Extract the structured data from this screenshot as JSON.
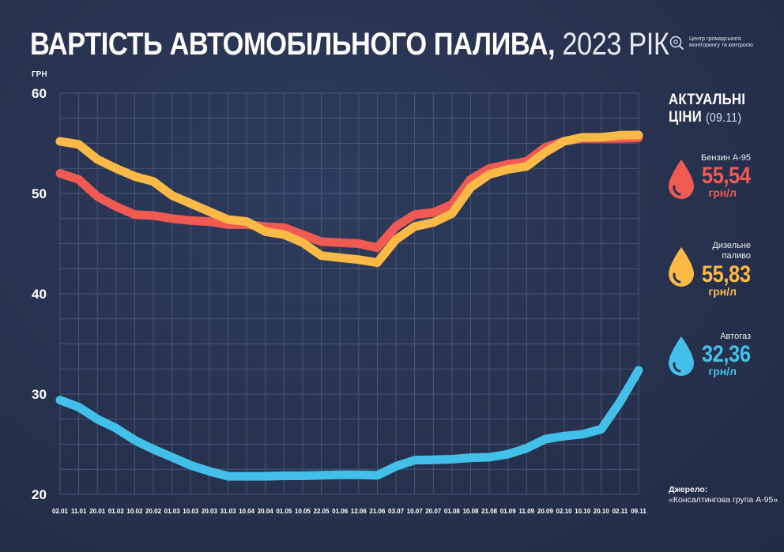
{
  "header": {
    "title_main": "ВАРТІСТЬ АВТОМОБІЛЬНОГО ПАЛИВА,",
    "title_sub": "2023 РІК",
    "logo_text": "Центр громадського моніторингу та контролю",
    "logo_icon": "magnifier-icon"
  },
  "colors": {
    "background": "#27324f",
    "grid": "#4a5677",
    "petrol": "#f05a52",
    "diesel": "#fbb945",
    "gas": "#42c0ea"
  },
  "panel": {
    "heading_line1": "АКТУАЛЬНІ",
    "heading_line2": "ЦІНИ",
    "heading_date": "(09.11)",
    "items": [
      {
        "name": "Бензин А-95",
        "value": "55,54",
        "unit": "грн/л",
        "color": "#f05a52"
      },
      {
        "name": "Дизельне паливо",
        "value": "55,83",
        "unit": "грн/л",
        "color": "#fbb945"
      },
      {
        "name": "Автогаз",
        "value": "32,36",
        "unit": "грн/л",
        "color": "#42c0ea"
      }
    ]
  },
  "source": {
    "label": "Джерело:",
    "text": "«Консалтингова група А-95»"
  },
  "chart_data": {
    "type": "line",
    "title": "ВАРТІСТЬ АВТОМОБІЛЬНОГО ПАЛИВА, 2023 РІК",
    "ylabel": "ГРН",
    "ylim": [
      20,
      60
    ],
    "yticks": [
      20,
      30,
      40,
      50,
      60
    ],
    "grid": true,
    "categories": [
      "02.01",
      "11.01",
      "20.01",
      "01.02",
      "10.02",
      "20.02",
      "01.03",
      "10.03",
      "20.03",
      "31.03",
      "10.04",
      "20.04",
      "01.05",
      "10.05",
      "22.05",
      "01.06",
      "12.06",
      "21.06",
      "03.07",
      "10.07",
      "20.07",
      "01.08",
      "10.08",
      "21.08",
      "01.09",
      "11.09",
      "20.09",
      "02.10",
      "10.10",
      "20.10",
      "02.11",
      "09.11"
    ],
    "series": [
      {
        "name": "Бензин А-95",
        "color": "#f05a52",
        "values": [
          52.0,
          51.4,
          49.7,
          48.7,
          47.9,
          47.8,
          47.5,
          47.3,
          47.2,
          46.9,
          46.9,
          46.7,
          46.6,
          45.9,
          45.2,
          45.1,
          45.0,
          44.6,
          46.7,
          47.9,
          48.1,
          48.9,
          51.4,
          52.5,
          52.9,
          53.2,
          54.6,
          55.2,
          55.5,
          55.5,
          55.5,
          55.54
        ]
      },
      {
        "name": "Дизельне паливо",
        "color": "#fbb945",
        "values": [
          55.2,
          54.9,
          53.4,
          52.5,
          51.7,
          51.2,
          49.8,
          49.0,
          48.2,
          47.4,
          47.2,
          46.2,
          45.9,
          45.1,
          43.8,
          43.6,
          43.4,
          43.1,
          45.4,
          46.7,
          47.1,
          48.0,
          50.6,
          51.9,
          52.4,
          52.7,
          54.1,
          55.2,
          55.6,
          55.6,
          55.8,
          55.83
        ]
      },
      {
        "name": "Автогаз",
        "color": "#42c0ea",
        "values": [
          29.4,
          28.7,
          27.5,
          26.6,
          25.4,
          24.5,
          23.7,
          22.9,
          22.3,
          21.8,
          21.8,
          21.8,
          21.85,
          21.85,
          21.9,
          21.95,
          21.95,
          21.9,
          22.8,
          23.4,
          23.45,
          23.5,
          23.65,
          23.7,
          24.0,
          24.6,
          25.5,
          25.8,
          26.0,
          26.5,
          29.2,
          32.36
        ]
      }
    ]
  }
}
